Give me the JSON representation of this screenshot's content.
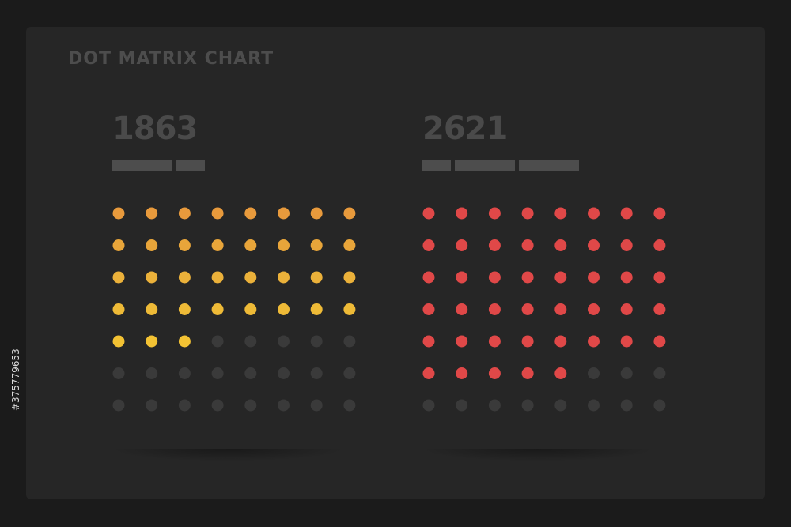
{
  "title": "DOT MATRIX CHART",
  "side_text": "#375779653",
  "colors": {
    "background": "#1b1b1b",
    "card": "#262626",
    "inactive_dot": "#3a3a3a",
    "label_bar": "#4d4d4d"
  },
  "chart_data": [
    {
      "type": "dot-matrix",
      "total": "1863",
      "rows": 7,
      "columns": 8,
      "filled_dots": 35,
      "fill_order": "row-major from top-left",
      "active_colors": [
        "#e89a3c",
        "#e8a53a",
        "#ebb13a",
        "#eeba37",
        "#f3c233"
      ],
      "inactive_color": "#3a3a3a"
    },
    {
      "type": "dot-matrix",
      "total": "2621",
      "rows": 7,
      "columns": 8,
      "filled_dots": 45,
      "fill_order": "row-major from top-left",
      "active_colors": [
        "#e04848",
        "#e04848",
        "#e04848",
        "#e04848",
        "#e04848",
        "#e04848"
      ],
      "inactive_color": "#3a3a3a"
    }
  ]
}
